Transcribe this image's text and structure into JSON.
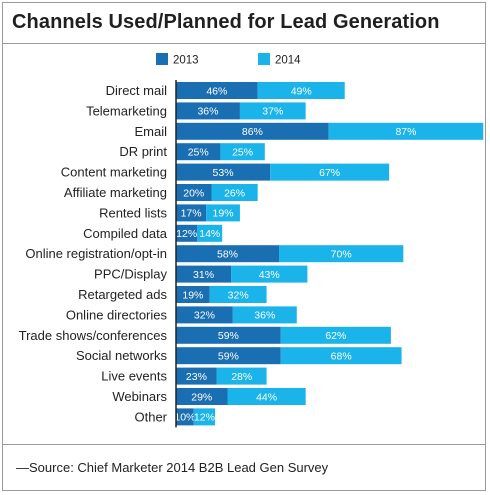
{
  "header": {
    "title": "Channels Used/Planned for Lead Generation"
  },
  "footer": {
    "source": "—Source: Chief Marketer 2014 B2B Lead Gen Survey"
  },
  "colors": {
    "series_2013": "#1a6fb3",
    "series_2014": "#1ab3ea",
    "label_text": "#ffffff",
    "category_text": "#222222",
    "axis": "#222222"
  },
  "chart_data": {
    "type": "bar",
    "orientation": "horizontal",
    "stacked": true,
    "title": "Channels Used/Planned for Lead Generation",
    "legend_position": "top",
    "grid": false,
    "categories": [
      "Direct mail",
      "Telemarketing",
      "Email",
      "DR print",
      "Content marketing",
      "Affiliate marketing",
      "Rented lists",
      "Compiled data",
      "Online registration/opt-in",
      "PPC/Display",
      "Retargeted ads",
      "Online directories",
      "Trade shows/conferences",
      "Social networks",
      "Live events",
      "Webinars",
      "Other"
    ],
    "series": [
      {
        "name": "2013",
        "values": [
          46,
          36,
          86,
          25,
          53,
          20,
          17,
          12,
          58,
          31,
          19,
          32,
          59,
          59,
          23,
          29,
          10
        ],
        "labels": [
          "46%",
          "36%",
          "86%",
          "25%",
          "53%",
          "20%",
          "17%",
          "12%",
          "58%",
          "31%",
          "19%",
          "32%",
          "59%",
          "59%",
          "23%",
          "29%",
          "10%"
        ]
      },
      {
        "name": "2014",
        "values": [
          49,
          37,
          87,
          25,
          67,
          26,
          19,
          14,
          70,
          43,
          32,
          36,
          62,
          68,
          28,
          44,
          12
        ],
        "labels": [
          "49%",
          "37%",
          "87%",
          "25%",
          "67%",
          "26%",
          "19%",
          "14%",
          "70%",
          "43%",
          "32%",
          "36%",
          "62%",
          "68%",
          "28%",
          "44%",
          "12%"
        ]
      }
    ]
  }
}
